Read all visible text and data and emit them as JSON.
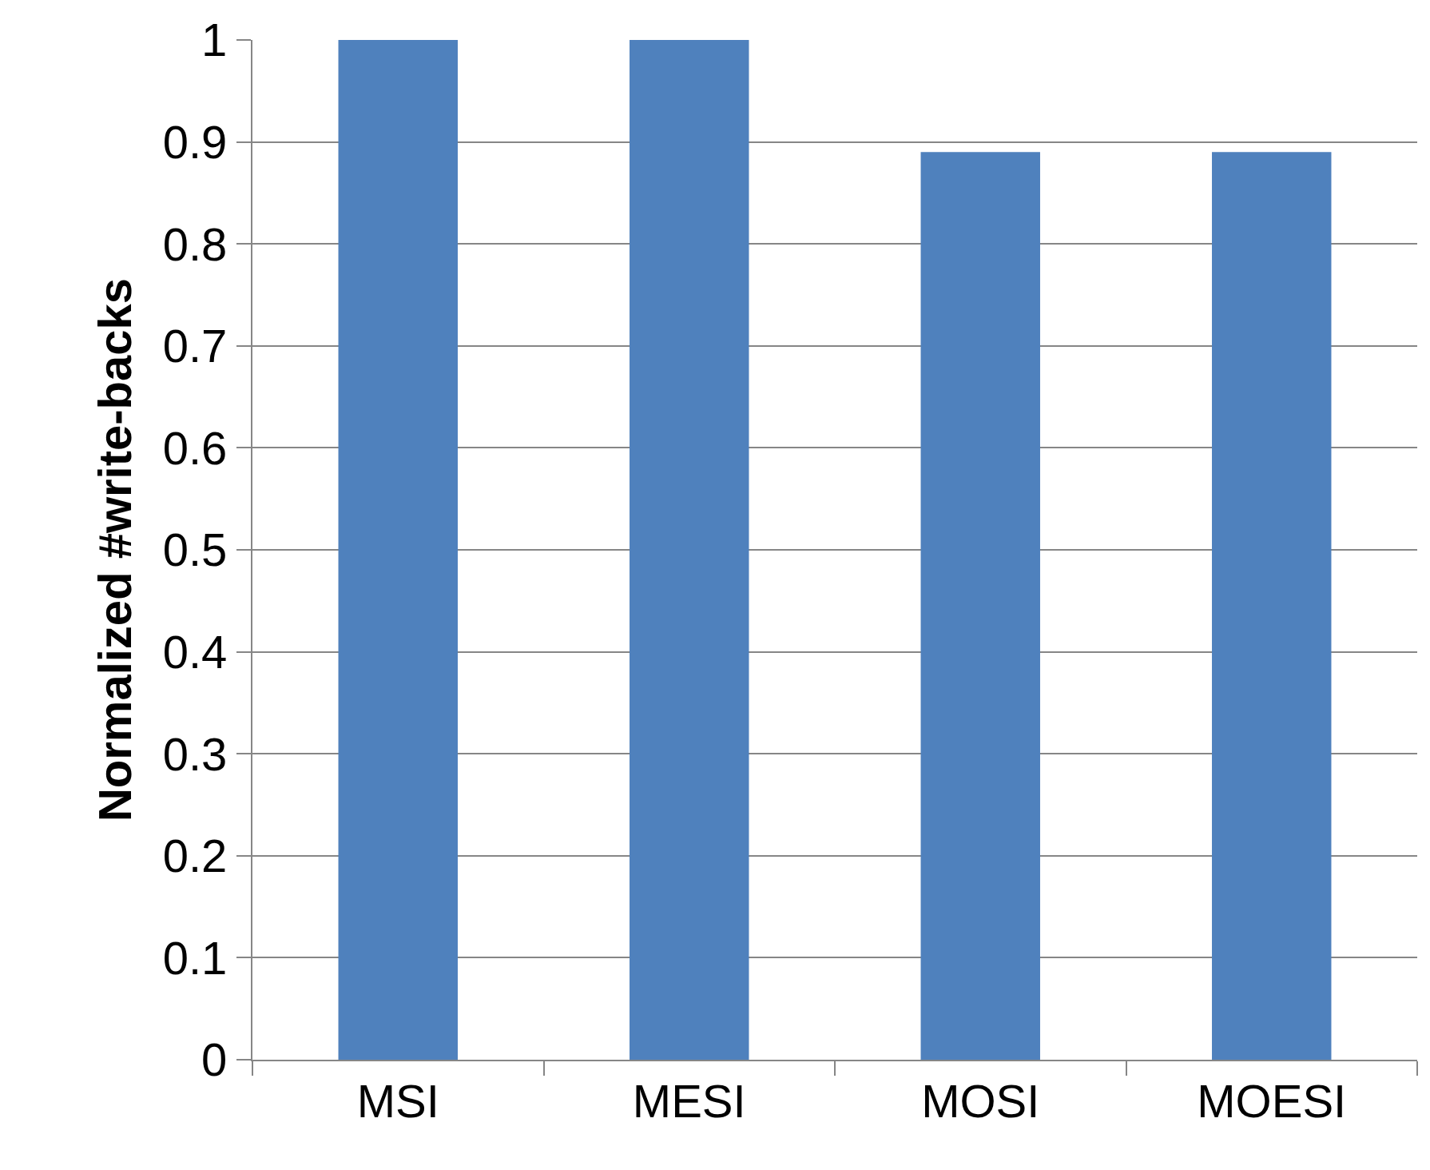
{
  "chart_data": {
    "type": "bar",
    "ylabel": "Normalized #write-backs",
    "categories": [
      "MSI",
      "MESI",
      "MOSI",
      "MOESI"
    ],
    "values": [
      1,
      1,
      0.89,
      0.89
    ],
    "color": "#4f81bd",
    "ylim": [
      0,
      1
    ],
    "yticks": [
      0,
      0.1,
      0.2,
      0.3,
      0.4,
      0.5,
      0.6,
      0.7,
      0.8,
      0.9,
      1
    ],
    "grid": "y"
  }
}
